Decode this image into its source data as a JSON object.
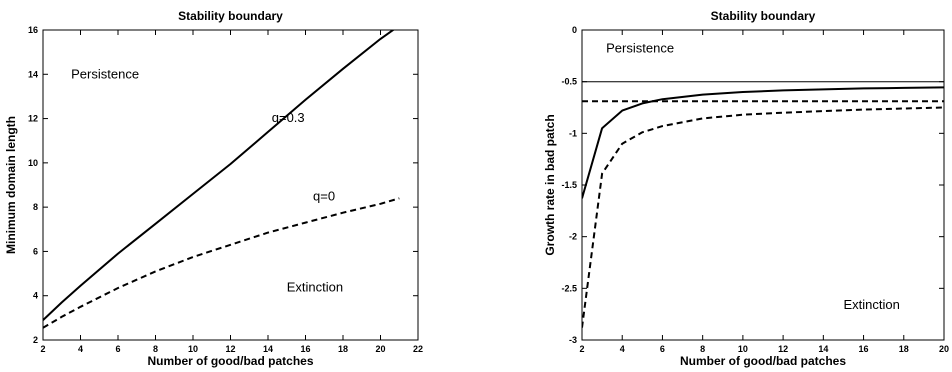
{
  "chart_data": [
    {
      "type": "line",
      "title": "Stability boundary",
      "xlabel": "Number of good/bad patches",
      "ylabel": "Minimum domain length",
      "xlim": [
        2,
        22
      ],
      "ylim": [
        2,
        16
      ],
      "xticks": [
        2,
        4,
        6,
        8,
        10,
        12,
        14,
        16,
        18,
        20,
        22
      ],
      "yticks": [
        2,
        4,
        6,
        8,
        10,
        12,
        14,
        16
      ],
      "grid": false,
      "series": [
        {
          "name": "q=0.3",
          "style": "solid",
          "x": [
            2,
            3,
            4,
            6,
            8,
            10,
            12,
            14,
            16,
            18,
            20,
            21
          ],
          "y": [
            2.9,
            3.7,
            4.45,
            5.9,
            7.25,
            8.6,
            9.95,
            11.4,
            12.85,
            14.25,
            15.6,
            16.2
          ]
        },
        {
          "name": "q=0",
          "style": "dashed",
          "x": [
            2,
            3,
            4,
            6,
            8,
            10,
            12,
            14,
            16,
            18,
            20,
            21
          ],
          "y": [
            2.55,
            3.05,
            3.5,
            4.35,
            5.1,
            5.75,
            6.3,
            6.85,
            7.3,
            7.75,
            8.15,
            8.4
          ]
        }
      ],
      "annotations": [
        {
          "text": "Persistence",
          "x": 3.5,
          "y": 13.8
        },
        {
          "text": "q=0.3",
          "x": 14.2,
          "y": 11.85
        },
        {
          "text": "q=0",
          "x": 16.4,
          "y": 8.3
        },
        {
          "text": "Extinction",
          "x": 15.0,
          "y": 4.2
        }
      ]
    },
    {
      "type": "line",
      "title": "Stability boundary",
      "xlabel": "Number of good/bad patches",
      "ylabel": "Growth rate in bad patch",
      "xlim": [
        2,
        20
      ],
      "ylim": [
        -3,
        0
      ],
      "xticks": [
        2,
        4,
        6,
        8,
        10,
        12,
        14,
        16,
        18,
        20
      ],
      "yticks": [
        0,
        -0.5,
        -1,
        -1.5,
        -2,
        -2.5,
        -3
      ],
      "ytick_labels": [
        "0",
        "-0.5",
        "-1",
        "-1.5",
        "-2",
        "-2.5",
        "-3"
      ],
      "grid": false,
      "series": [
        {
          "style": "solid",
          "x": [
            2,
            3,
            4,
            5,
            6,
            8,
            10,
            12,
            14,
            16,
            18,
            20
          ],
          "y": [
            -1.63,
            -0.95,
            -0.78,
            -0.71,
            -0.67,
            -0.625,
            -0.6,
            -0.585,
            -0.575,
            -0.565,
            -0.56,
            -0.555
          ]
        },
        {
          "style": "dashed",
          "x": [
            2,
            3,
            4,
            5,
            6,
            8,
            10,
            12,
            14,
            16,
            18,
            20
          ],
          "y": [
            -2.88,
            -1.39,
            -1.1,
            -0.99,
            -0.93,
            -0.855,
            -0.82,
            -0.8,
            -0.785,
            -0.77,
            -0.76,
            -0.75
          ]
        },
        {
          "style": "solid-thin",
          "x": [
            2,
            20
          ],
          "y": [
            -0.5,
            -0.5
          ]
        },
        {
          "style": "dashed",
          "x": [
            2,
            20
          ],
          "y": [
            -0.69,
            -0.69
          ]
        }
      ],
      "annotations": [
        {
          "text": "Persistence",
          "x": 3.2,
          "y": -0.22
        },
        {
          "text": "Extinction",
          "x": 15.0,
          "y": -2.7
        }
      ]
    }
  ]
}
